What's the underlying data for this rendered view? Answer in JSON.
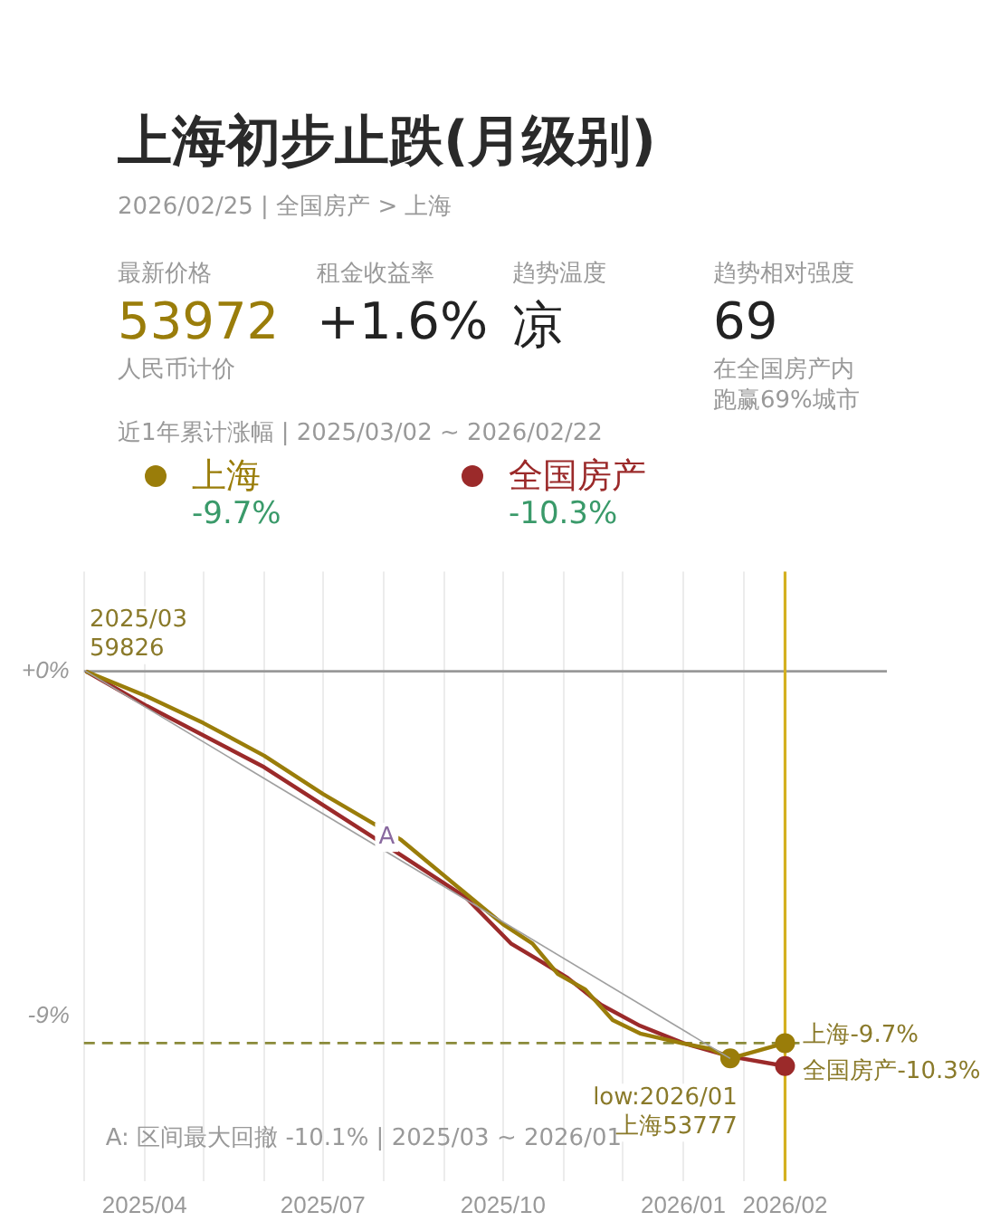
{
  "chart_data": [
    {
      "type": "other",
      "title": "上海初步止跌(月级别)",
      "subtitle": "2026/02/25 | 全国房产 > 上海",
      "annotations": [
        "最新价格",
        "53972",
        "人民币计价",
        "租金收益率",
        "+1.6%",
        "趋势温度",
        "凉",
        "趋势相对强度",
        "69",
        "在全国房产内",
        "跑赢69%城市",
        "近1年累计涨幅 | 2025/03/02 ~ 2026/02/22"
      ]
    },
    {
      "type": "line",
      "legend": "top left",
      "grid": "x",
      "marker": "none",
      "xlim": [
        "2025-03-01",
        "2026-04-15"
      ],
      "xticks": [
        {
          "value": "2025-03-01",
          "label": null
        },
        {
          "value": "2025-04-01",
          "label": "2025/04"
        },
        {
          "value": "2025-05-01",
          "label": null
        },
        {
          "value": "2025-06-01",
          "label": null
        },
        {
          "value": "2025-07-01",
          "label": "2025/07"
        },
        {
          "value": "2025-08-01",
          "label": null
        },
        {
          "value": "2025-09-01",
          "label": null
        },
        {
          "value": "2025-10-01",
          "label": "2025/10"
        },
        {
          "value": "2025-11-01",
          "label": null
        },
        {
          "value": "2025-12-01",
          "label": null
        },
        {
          "value": "2026-01-01",
          "label": "2026/01"
        },
        {
          "value": "2026-02-01",
          "label": null
        },
        {
          "value": "2026-02-22",
          "label": "2026/02"
        }
      ],
      "ylim": [
        -13.3,
        2.6
      ],
      "yticks": [
        {
          "value": 0,
          "label": "+0%"
        },
        {
          "value": -9,
          "label": "-9%"
        }
      ],
      "series": [
        {
          "name": "上海",
          "color": "#9a7d0a",
          "x": [
            "2025-03-02",
            "2025-04-02",
            "2025-05-01",
            "2025-06-01",
            "2025-07-01",
            "2025-08-10",
            "2025-09-12",
            "2025-10-01",
            "2025-10-16",
            "2025-10-29",
            "2025-11-12",
            "2025-11-26",
            "2025-12-10",
            "2025-12-31",
            "2026-01-15",
            "2026-01-25",
            "2026-02-22"
          ],
          "values": [
            0,
            -0.65,
            -1.35,
            -2.2,
            -3.2,
            -4.4,
            -5.8,
            -6.6,
            -7.1,
            -7.9,
            -8.3,
            -9.1,
            -9.45,
            -9.7,
            -9.85,
            -10.1,
            -9.7
          ]
        },
        {
          "name": "全国房产",
          "color": "#9b2a2a",
          "x": [
            "2025-03-02",
            "2025-04-02",
            "2025-06-01",
            "2025-08-10",
            "2025-09-12",
            "2025-10-05",
            "2025-10-18",
            "2025-11-03",
            "2025-11-20",
            "2025-12-10",
            "2026-01-01",
            "2026-01-25",
            "2026-02-22"
          ],
          "values": [
            0,
            -0.9,
            -2.5,
            -4.8,
            -5.9,
            -7.1,
            -7.5,
            -8.0,
            -8.7,
            -9.25,
            -9.7,
            -10.05,
            -10.3
          ]
        },
        {
          "type": "line",
          "color": "#a0a0a0",
          "x": [
            "2025-03-02",
            "2026-01-25"
          ],
          "values": [
            0,
            -10.1
          ]
        },
        {
          "type": "scatter",
          "marker": "circle",
          "colors": [
            "#9a7d0a",
            "#9a7d0a",
            "#9b2a2a"
          ],
          "x": [
            "2026-01-25",
            "2026-02-22",
            "2026-02-22"
          ],
          "values": [
            -10.1,
            -9.7,
            -10.3
          ]
        }
      ],
      "ref_lines": [
        {
          "axis": "y",
          "value": 0,
          "color": "#999999",
          "line_style": "solid"
        },
        {
          "axis": "y",
          "value": -9.7,
          "color": "#8a8a3a",
          "line_style": "dashed"
        },
        {
          "axis": "x",
          "value": "2026-02-22",
          "color": "#d4b020",
          "line_style": "solid"
        }
      ],
      "annotations": [
        "-9.7%",
        "-10.3%",
        "A: 区间最大回撤 -10.1% | 2025/03 ~ 2026/01",
        {
          "text": "2025/03\n59826",
          "x": "2025-03-02",
          "y": 0
        },
        {
          "text": "A",
          "x": "2025-08-10",
          "y": -4.9
        },
        {
          "text": "low:2026/01\n上海53777",
          "x": "2026-01-25",
          "y": -10.1
        },
        {
          "text": "上海-9.7%",
          "x": "2026-02-22",
          "y": -9.7
        },
        {
          "text": "全国房产-10.3%",
          "x": "2026-02-22",
          "y": -10.3
        }
      ]
    }
  ]
}
